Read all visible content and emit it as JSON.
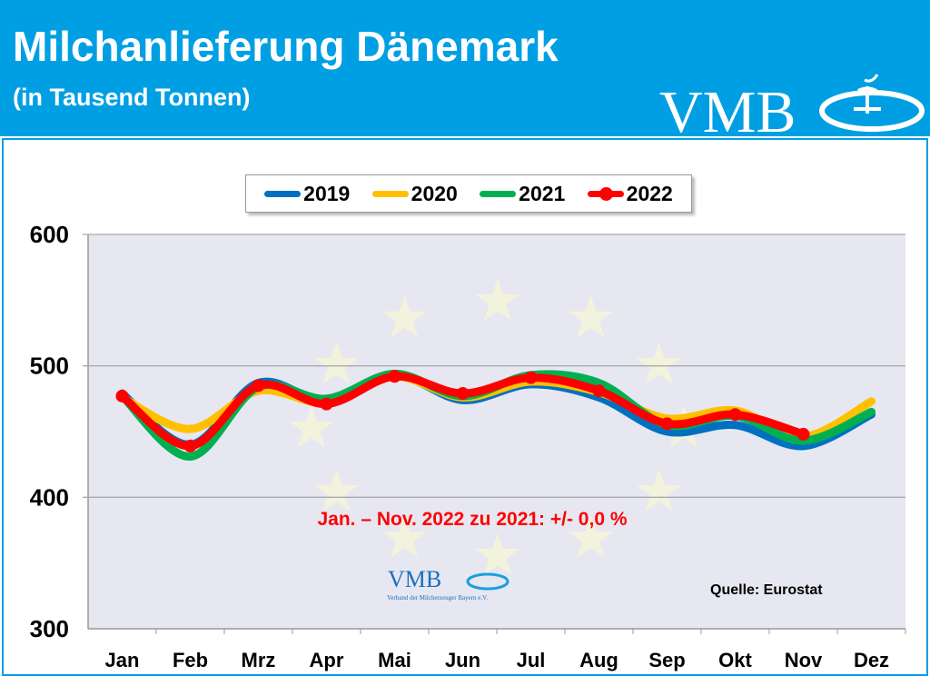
{
  "header": {
    "title": "Milchanlieferung Dänemark",
    "subtitle": "(in Tausend Tonnen)",
    "logo_text": "VMB",
    "background_color": "#009fe3"
  },
  "chart_data": {
    "type": "line",
    "categories": [
      "Jan",
      "Feb",
      "Mrz",
      "Apr",
      "Mai",
      "Jun",
      "Jul",
      "Aug",
      "Sep",
      "Okt",
      "Nov",
      "Dez"
    ],
    "ylim": [
      300,
      600
    ],
    "yticks": [
      300,
      400,
      500,
      600
    ],
    "grid": true,
    "legend_position": "top",
    "series": [
      {
        "name": "2019",
        "color": "#0070c0",
        "values": [
          479,
          440,
          487,
          473,
          493,
          474,
          486,
          476,
          450,
          455,
          439,
          463
        ]
      },
      {
        "name": "2020",
        "color": "#ffc000",
        "values": [
          476,
          452,
          481,
          472,
          492,
          476,
          488,
          480,
          460,
          466,
          446,
          473
        ]
      },
      {
        "name": "2021",
        "color": "#00b050",
        "values": [
          477,
          431,
          484,
          475,
          494,
          477,
          493,
          487,
          455,
          462,
          443,
          465
        ]
      },
      {
        "name": "2022",
        "color": "#ff0000",
        "values": [
          477,
          439,
          485,
          471,
          492,
          479,
          491,
          481,
          456,
          463,
          448,
          null
        ],
        "markers": true
      }
    ],
    "annotation": "Jan. – Nov. 2022 zu 2021:  +/- 0,0 %",
    "annotation_color": "#ff0000",
    "source": "Quelle: Eurostat",
    "watermark_logo_text": "VMB",
    "watermark_caption": "Verband der Milcherzeuger Bayern e.V."
  }
}
